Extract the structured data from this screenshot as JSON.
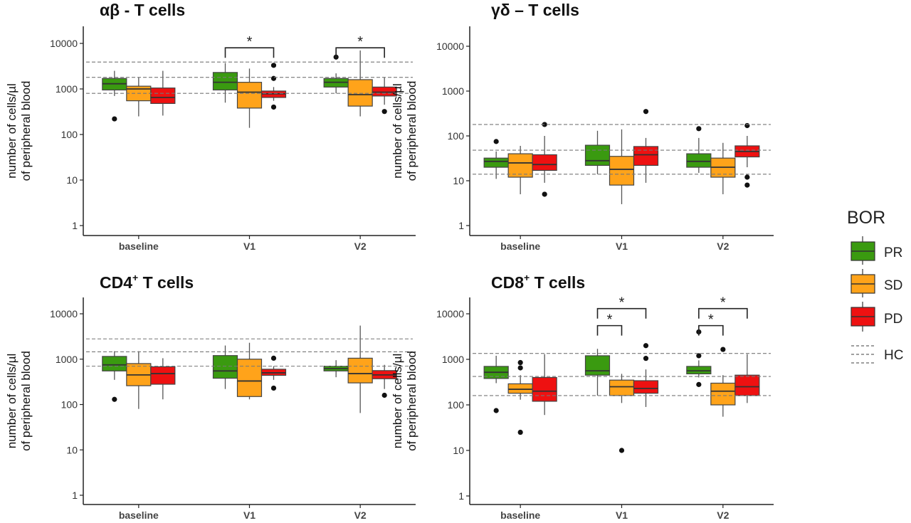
{
  "figure": {
    "legend": {
      "title": "BOR",
      "entries": [
        {
          "label": "PR",
          "color": "#3a9a10"
        },
        {
          "label": "SD",
          "color": "#ffa31a"
        },
        {
          "label": "PD",
          "color": "#ee1111"
        }
      ],
      "reference_label": "HC"
    }
  },
  "chart_data": [
    {
      "type": "boxplot",
      "id": "ab",
      "title_main": "αβ - T cells",
      "title_sup": "",
      "title_tail": "",
      "ylabel_line1": "number of cells/µl",
      "ylabel_line2": "of peripheral blood",
      "yscale": "log10",
      "ylim": [
        0.8,
        25000
      ],
      "yticks": [
        1,
        10,
        100,
        1000,
        10000
      ],
      "ytick_labels": [
        "1",
        "10",
        "100",
        "1000",
        "10000"
      ],
      "categories": [
        "baseline",
        "V1",
        "V2"
      ],
      "hc_reference_lines": [
        800,
        1800,
        3900
      ],
      "grid": false,
      "series": [
        {
          "name": "PR",
          "color": "#3a9a10",
          "boxes": [
            {
              "whisker_low": 700,
              "q1": 950,
              "median": 1300,
              "q3": 1700,
              "whisker_high": 2500,
              "outliers": [
                220
              ]
            },
            {
              "whisker_low": 500,
              "q1": 950,
              "median": 1400,
              "q3": 2300,
              "whisker_high": 3700,
              "outliers": []
            },
            {
              "whisker_low": 800,
              "q1": 1100,
              "median": 1400,
              "q3": 1700,
              "whisker_high": 2200,
              "outliers": [
                5000
              ]
            }
          ]
        },
        {
          "name": "SD",
          "color": "#ffa31a",
          "boxes": [
            {
              "whisker_low": 250,
              "q1": 550,
              "median": 1000,
              "q3": 1150,
              "whisker_high": 1800,
              "outliers": []
            },
            {
              "whisker_low": 140,
              "q1": 380,
              "median": 850,
              "q3": 1400,
              "whisker_high": 2800,
              "outliers": []
            },
            {
              "whisker_low": 250,
              "q1": 420,
              "median": 750,
              "q3": 1600,
              "whisker_high": 7000,
              "outliers": []
            }
          ]
        },
        {
          "name": "PD",
          "color": "#ee1111",
          "boxes": [
            {
              "whisker_low": 260,
              "q1": 480,
              "median": 650,
              "q3": 1050,
              "whisker_high": 2500,
              "outliers": []
            },
            {
              "whisker_low": 550,
              "q1": 650,
              "median": 780,
              "q3": 900,
              "whisker_high": 1100,
              "outliers": [
                400,
                1700,
                3300
              ]
            },
            {
              "whisker_low": 450,
              "q1": 700,
              "median": 850,
              "q3": 1100,
              "whisker_high": 1800,
              "outliers": [
                320
              ]
            }
          ]
        }
      ],
      "brackets": [
        {
          "category": 1,
          "from": "PR",
          "to": "PD",
          "y": 8000,
          "label": "*"
        },
        {
          "category": 2,
          "from": "PR",
          "to": "PD",
          "y": 8000,
          "label": "*"
        }
      ]
    },
    {
      "type": "boxplot",
      "id": "gd",
      "title_main": "γδ – T cells",
      "title_sup": "",
      "title_tail": "",
      "ylabel_line1": "number of cells/µl",
      "ylabel_line2": "of peripheral blood",
      "yscale": "log10",
      "ylim": [
        0.8,
        25000
      ],
      "yticks": [
        1,
        10,
        100,
        1000,
        10000
      ],
      "ytick_labels": [
        "1",
        "10",
        "100",
        "1000",
        "10000"
      ],
      "categories": [
        "baseline",
        "V1",
        "V2"
      ],
      "hc_reference_lines": [
        14,
        48,
        180
      ],
      "grid": false,
      "series": [
        {
          "name": "PR",
          "color": "#3a9a10",
          "boxes": [
            {
              "whisker_low": 11,
              "q1": 20,
              "median": 27,
              "q3": 32,
              "whisker_high": 45,
              "outliers": [
                75
              ]
            },
            {
              "whisker_low": 14,
              "q1": 22,
              "median": 28,
              "q3": 62,
              "whisker_high": 130,
              "outliers": []
            },
            {
              "whisker_low": 15,
              "q1": 20,
              "median": 27,
              "q3": 40,
              "whisker_high": 90,
              "outliers": [
                145
              ]
            }
          ]
        },
        {
          "name": "SD",
          "color": "#ffa31a",
          "boxes": [
            {
              "whisker_low": 5,
              "q1": 12,
              "median": 25,
              "q3": 40,
              "whisker_high": 60,
              "outliers": []
            },
            {
              "whisker_low": 3,
              "q1": 8,
              "median": 18,
              "q3": 35,
              "whisker_high": 140,
              "outliers": []
            },
            {
              "whisker_low": 5,
              "q1": 12,
              "median": 20,
              "q3": 32,
              "whisker_high": 70,
              "outliers": []
            }
          ]
        },
        {
          "name": "PD",
          "color": "#ee1111",
          "boxes": [
            {
              "whisker_low": 9,
              "q1": 17,
              "median": 23,
              "q3": 38,
              "whisker_high": 100,
              "outliers": [
                5,
                180
              ]
            },
            {
              "whisker_low": 9,
              "q1": 22,
              "median": 38,
              "q3": 58,
              "whisker_high": 90,
              "outliers": [
                350
              ]
            },
            {
              "whisker_low": 20,
              "q1": 34,
              "median": 45,
              "q3": 60,
              "whisker_high": 100,
              "outliers": [
                8,
                12,
                170
              ]
            }
          ]
        }
      ],
      "brackets": []
    },
    {
      "type": "boxplot",
      "id": "cd4",
      "title_main": "CD4",
      "title_sup": "+",
      "title_tail": " T cells",
      "ylabel_line1": "number of cells/µl",
      "ylabel_line2": "of peripheral blood",
      "yscale": "log10",
      "ylim": [
        0.8,
        25000
      ],
      "yticks": [
        1,
        10,
        100,
        1000,
        10000
      ],
      "ytick_labels": [
        "1",
        "10",
        "100",
        "1000",
        "10000"
      ],
      "categories": [
        "baseline",
        "V1",
        "V2"
      ],
      "hc_reference_lines": [
        700,
        1450,
        2800
      ],
      "grid": false,
      "series": [
        {
          "name": "PR",
          "color": "#3a9a10",
          "boxes": [
            {
              "whisker_low": 350,
              "q1": 550,
              "median": 750,
              "q3": 1150,
              "whisker_high": 1500,
              "outliers": [
                130
              ]
            },
            {
              "whisker_low": 220,
              "q1": 380,
              "median": 550,
              "q3": 1200,
              "whisker_high": 2000,
              "outliers": []
            },
            {
              "whisker_low": 400,
              "q1": 550,
              "median": 620,
              "q3": 700,
              "whisker_high": 950,
              "outliers": []
            }
          ]
        },
        {
          "name": "SD",
          "color": "#ffa31a",
          "boxes": [
            {
              "whisker_low": 80,
              "q1": 260,
              "median": 450,
              "q3": 800,
              "whisker_high": 1500,
              "outliers": []
            },
            {
              "whisker_low": 130,
              "q1": 150,
              "median": 330,
              "q3": 1000,
              "whisker_high": 2300,
              "outliers": []
            },
            {
              "whisker_low": 65,
              "q1": 300,
              "median": 480,
              "q3": 1050,
              "whisker_high": 5500,
              "outliers": []
            }
          ]
        },
        {
          "name": "PD",
          "color": "#ee1111",
          "boxes": [
            {
              "whisker_low": 130,
              "q1": 280,
              "median": 480,
              "q3": 680,
              "whisker_high": 1050,
              "outliers": []
            },
            {
              "whisker_low": 350,
              "q1": 440,
              "median": 500,
              "q3": 600,
              "whisker_high": 700,
              "outliers": [
                230,
                1050
              ]
            },
            {
              "whisker_low": 220,
              "q1": 370,
              "median": 450,
              "q3": 560,
              "whisker_high": 750,
              "outliers": [
                160
              ]
            }
          ]
        }
      ],
      "brackets": []
    },
    {
      "type": "boxplot",
      "id": "cd8",
      "title_main": "CD8",
      "title_sup": "+",
      "title_tail": " T cells",
      "ylabel_line1": "number of cells/µl",
      "ylabel_line2": "of peripheral blood",
      "yscale": "log10",
      "ylim": [
        0.8,
        25000
      ],
      "yticks": [
        1,
        10,
        100,
        1000,
        10000
      ],
      "ytick_labels": [
        "1",
        "10",
        "100",
        "1000",
        "10000"
      ],
      "categories": [
        "baseline",
        "V1",
        "V2"
      ],
      "hc_reference_lines": [
        160,
        420,
        1350
      ],
      "grid": false,
      "series": [
        {
          "name": "PR",
          "color": "#3a9a10",
          "boxes": [
            {
              "whisker_low": 300,
              "q1": 380,
              "median": 520,
              "q3": 700,
              "whisker_high": 1200,
              "outliers": [
                75
              ]
            },
            {
              "whisker_low": 160,
              "q1": 450,
              "median": 560,
              "q3": 1200,
              "whisker_high": 1700,
              "outliers": []
            },
            {
              "whisker_low": 400,
              "q1": 480,
              "median": 560,
              "q3": 700,
              "whisker_high": 950,
              "outliers": [
                280,
                1200,
                4000
              ]
            }
          ]
        },
        {
          "name": "SD",
          "color": "#ffa31a",
          "boxes": [
            {
              "whisker_low": 130,
              "q1": 180,
              "median": 220,
              "q3": 290,
              "whisker_high": 450,
              "outliers": [
                25,
                650,
                850
              ]
            },
            {
              "whisker_low": 110,
              "q1": 160,
              "median": 250,
              "q3": 350,
              "whisker_high": 480,
              "outliers": [
                10
              ]
            },
            {
              "whisker_low": 55,
              "q1": 100,
              "median": 200,
              "q3": 300,
              "whisker_high": 450,
              "outliers": [
                1650
              ]
            }
          ]
        },
        {
          "name": "PD",
          "color": "#ee1111",
          "boxes": [
            {
              "whisker_low": 60,
              "q1": 120,
              "median": 200,
              "q3": 400,
              "whisker_high": 1300,
              "outliers": []
            },
            {
              "whisker_low": 90,
              "q1": 180,
              "median": 230,
              "q3": 340,
              "whisker_high": 600,
              "outliers": [
                1050,
                2000
              ]
            },
            {
              "whisker_low": 110,
              "q1": 160,
              "median": 250,
              "q3": 450,
              "whisker_high": 1300,
              "outliers": []
            }
          ]
        }
      ],
      "brackets": [
        {
          "category": 1,
          "from": "PR",
          "to": "SD",
          "y": 5500,
          "label": "*"
        },
        {
          "category": 1,
          "from": "PR",
          "to": "PD",
          "y": 13000,
          "label": "*"
        },
        {
          "category": 2,
          "from": "PR",
          "to": "SD",
          "y": 5500,
          "label": "*"
        },
        {
          "category": 2,
          "from": "PR",
          "to": "PD",
          "y": 13000,
          "label": "*"
        }
      ]
    }
  ]
}
